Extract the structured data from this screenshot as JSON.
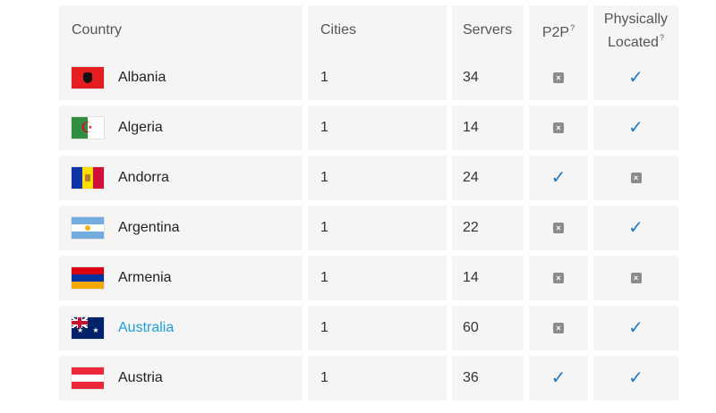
{
  "header": {
    "country": "Country",
    "cities": "Cities",
    "servers": "Servers",
    "p2p": "P2P",
    "p2p_sup": "?",
    "physically_line1": "Physically",
    "physically_line2": "Located",
    "physically_sup": "?"
  },
  "rows": [
    {
      "country": "Albania",
      "flag": "albania-flag-icon",
      "cities": "1",
      "servers": "34",
      "p2p": false,
      "physically_located": true
    },
    {
      "country": "Algeria",
      "flag": "algeria-flag-icon",
      "cities": "1",
      "servers": "14",
      "p2p": false,
      "physically_located": true
    },
    {
      "country": "Andorra",
      "flag": "andorra-flag-icon",
      "cities": "1",
      "servers": "24",
      "p2p": true,
      "physically_located": false
    },
    {
      "country": "Argentina",
      "flag": "argentina-flag-icon",
      "cities": "1",
      "servers": "22",
      "p2p": false,
      "physically_located": true
    },
    {
      "country": "Armenia",
      "flag": "armenia-flag-icon",
      "cities": "1",
      "servers": "14",
      "p2p": false,
      "physically_located": false
    },
    {
      "country": "Australia",
      "flag": "australia-flag-icon",
      "cities": "1",
      "servers": "60",
      "p2p": false,
      "physically_located": true,
      "link": true
    },
    {
      "country": "Austria",
      "flag": "austria-flag-icon",
      "cities": "1",
      "servers": "36",
      "p2p": true,
      "physically_located": true
    }
  ],
  "icons": {
    "check": "✓",
    "cross": "×"
  },
  "colors": {
    "link": "#1ca0d8",
    "check": "#1f78b8",
    "cross_bg": "#8c8c8c",
    "cell_bg": "#f5f5f5"
  }
}
